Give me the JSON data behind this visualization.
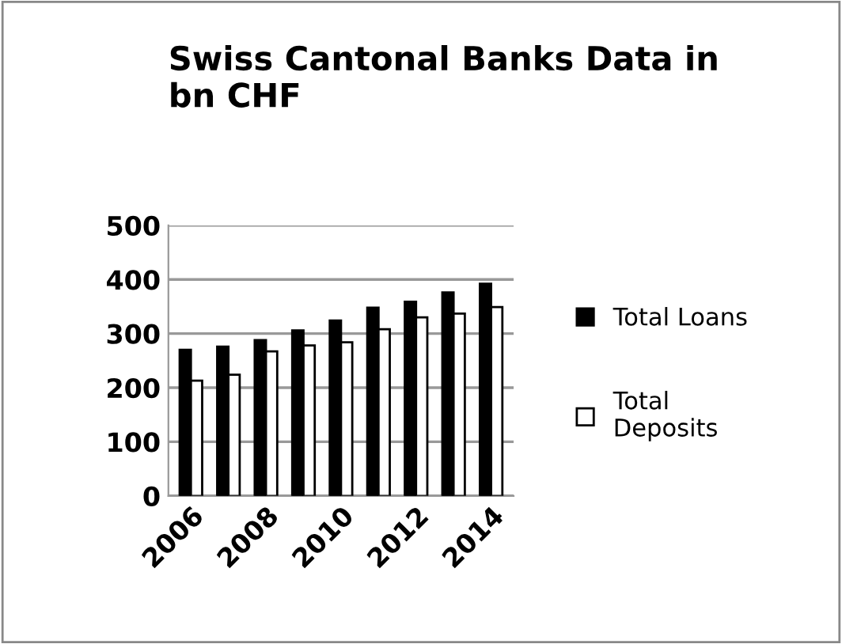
{
  "chart_data": {
    "type": "bar",
    "title": "Swiss Cantonal Banks Data in\nbn CHF",
    "categories": [
      "2006",
      null,
      "2008",
      null,
      "2010",
      null,
      "2012",
      null,
      "2014"
    ],
    "series": [
      {
        "name": "Total Loans",
        "color": "#000000",
        "values": [
          270,
          276,
          288,
          306,
          324,
          348,
          359,
          376,
          392
        ]
      },
      {
        "name": "Total\nDeposits",
        "color": "#ffffff",
        "values": [
          213,
          224,
          267,
          278,
          284,
          308,
          330,
          337,
          349
        ]
      }
    ],
    "ylim": [
      0,
      500
    ],
    "yticks": [
      0,
      100,
      200,
      300,
      400,
      500
    ],
    "grid": "y",
    "legend": "right"
  }
}
